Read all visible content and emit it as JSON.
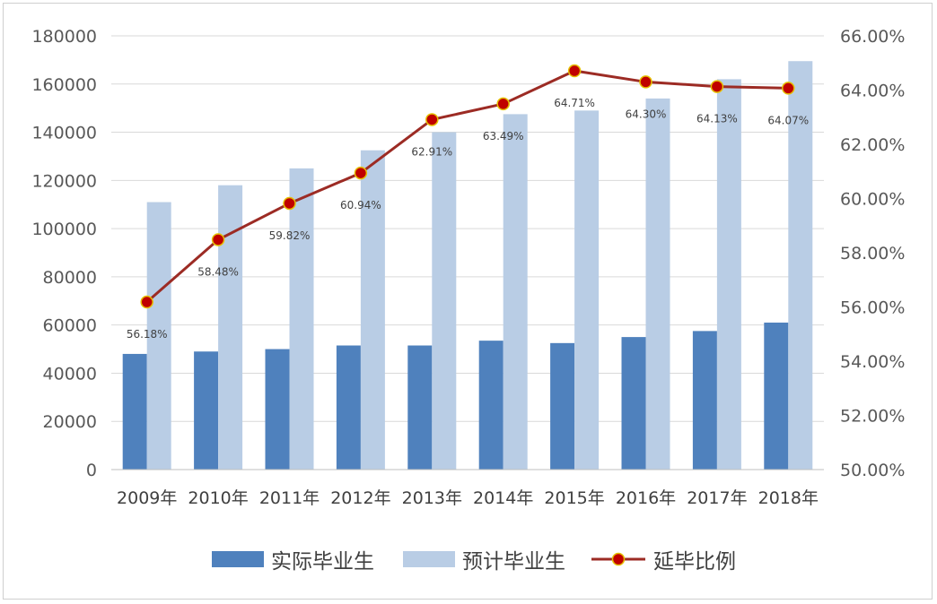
{
  "chart_data": {
    "type": "bar",
    "categories": [
      "2009年",
      "2010年",
      "2011年",
      "2012年",
      "2013年",
      "2014年",
      "2015年",
      "2016年",
      "2017年",
      "2018年"
    ],
    "series": [
      {
        "name": "实际毕业生",
        "type": "bar",
        "axis": "left",
        "color": "#4f81bd",
        "values": [
          48000,
          49000,
          50000,
          51500,
          51500,
          53500,
          52500,
          55000,
          57500,
          61000
        ]
      },
      {
        "name": "预计毕业生",
        "type": "bar",
        "axis": "left",
        "color": "#b9cde5",
        "values": [
          111000,
          118000,
          125000,
          132500,
          140000,
          147500,
          149000,
          154000,
          162000,
          169500
        ]
      },
      {
        "name": "延毕比例",
        "type": "line",
        "axis": "right",
        "color": "#9c2b24",
        "marker_color": "#c00000",
        "values": [
          56.18,
          58.48,
          59.82,
          60.94,
          62.91,
          63.49,
          64.71,
          64.3,
          64.13,
          64.07
        ],
        "labels": [
          "56.18%",
          "58.48%",
          "59.82%",
          "60.94%",
          "62.91%",
          "63.49%",
          "64.71%",
          "64.30%",
          "64.13%",
          "64.07%"
        ]
      }
    ],
    "y_left": {
      "min": 0,
      "max": 180000,
      "ticks": [
        "0",
        "20000",
        "40000",
        "60000",
        "80000",
        "100000",
        "120000",
        "140000",
        "160000",
        "180000"
      ]
    },
    "y_right": {
      "min": 50,
      "max": 66,
      "ticks": [
        "50.00%",
        "52.00%",
        "54.00%",
        "56.00%",
        "58.00%",
        "60.00%",
        "62.00%",
        "64.00%",
        "66.00%"
      ]
    },
    "grid": true,
    "legend_position": "bottom",
    "title": "",
    "xlabel": "",
    "ylabel": ""
  }
}
